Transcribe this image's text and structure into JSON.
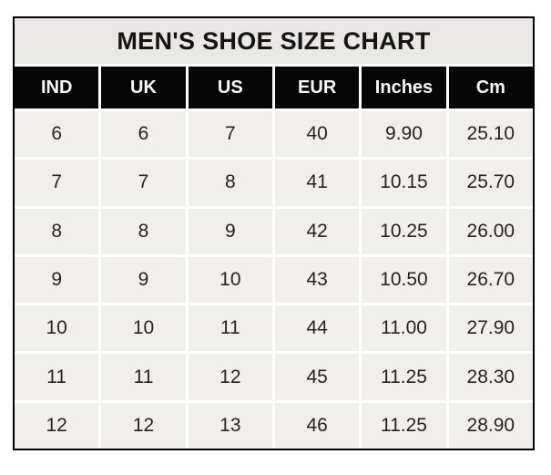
{
  "title": "MEN'S SHOE SIZE CHART",
  "colors": {
    "page_bg": "#ffffff",
    "frame_border": "#000000",
    "title_bg": "#e9e8e6",
    "header_bg": "#060606",
    "header_text": "#f7f7f7",
    "cell_bg": "#f0efed",
    "cell_text": "#242424",
    "gridline": "#ffffff"
  },
  "chart_data": {
    "type": "table",
    "title": "MEN'S SHOE SIZE CHART",
    "columns": [
      "IND",
      "UK",
      "US",
      "EUR",
      "Inches",
      "Cm"
    ],
    "rows": [
      [
        "6",
        "6",
        "7",
        "40",
        "9.90",
        "25.10"
      ],
      [
        "7",
        "7",
        "8",
        "41",
        "10.15",
        "25.70"
      ],
      [
        "8",
        "8",
        "9",
        "42",
        "10.25",
        "26.00"
      ],
      [
        "9",
        "9",
        "10",
        "43",
        "10.50",
        "26.70"
      ],
      [
        "10",
        "10",
        "11",
        "44",
        "11.00",
        "27.90"
      ],
      [
        "11",
        "11",
        "12",
        "45",
        "11.25",
        "28.30"
      ],
      [
        "12",
        "12",
        "13",
        "46",
        "11.25",
        "28.90"
      ]
    ]
  }
}
